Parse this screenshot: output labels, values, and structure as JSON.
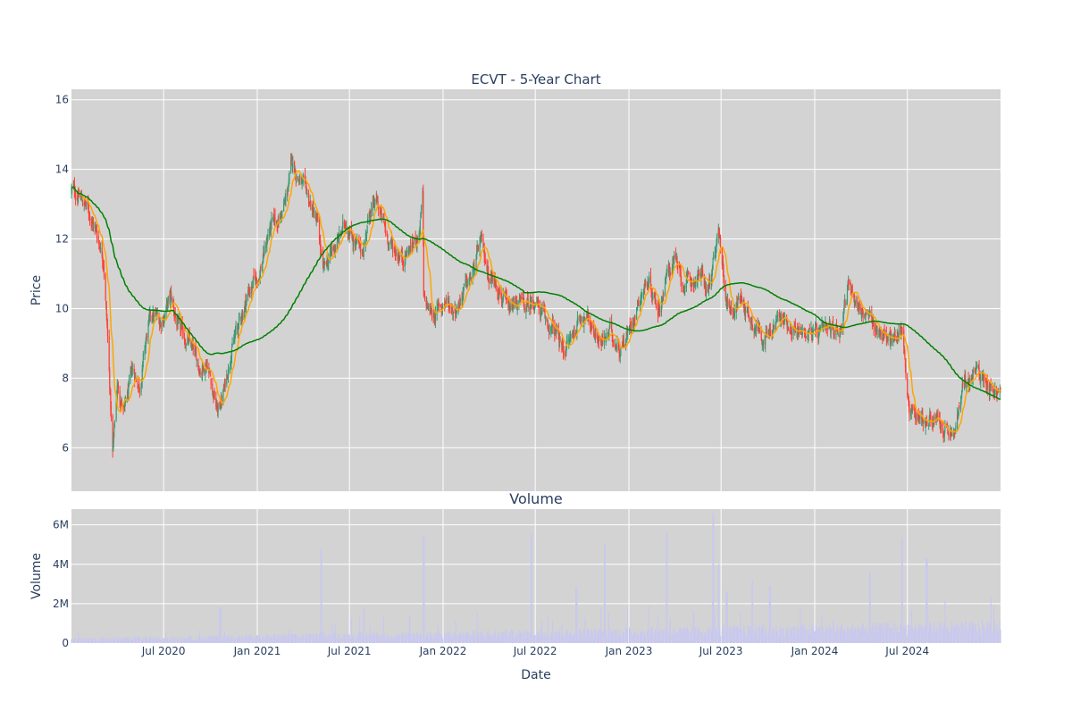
{
  "colors": {
    "background": "#ffffff",
    "plot_background": "#d3d3d3",
    "grid": "#ffffff",
    "increasing": "#3d9970",
    "decreasing": "#ff4136",
    "ma_short": "#ffa500",
    "ma_long": "#008000",
    "volume": "#c8c8f0",
    "text": "#2a3f5f"
  },
  "chart_data": [
    {
      "type": "candlestick",
      "title": "ECVT - 5-Year Chart",
      "ylabel": "Price",
      "ylim": [
        4.75,
        16.3
      ],
      "y_ticks": [
        6,
        8,
        10,
        12,
        14,
        16
      ],
      "x_range": [
        "2020-01-02",
        "2024-12-31"
      ],
      "grid": true,
      "series": [
        {
          "kind": "ohlc",
          "anchor_dates": [
            "2020-01-02",
            "2020-01-20",
            "2020-02-05",
            "2020-02-20",
            "2020-03-05",
            "2020-03-12",
            "2020-03-18",
            "2020-03-23",
            "2020-04-01",
            "2020-04-15",
            "2020-05-01",
            "2020-05-15",
            "2020-06-01",
            "2020-06-10",
            "2020-06-25",
            "2020-07-15",
            "2020-08-01",
            "2020-08-20",
            "2020-09-10",
            "2020-09-25",
            "2020-10-15",
            "2020-10-30",
            "2020-11-10",
            "2020-11-25",
            "2020-12-15",
            "2021-01-05",
            "2021-01-25",
            "2021-02-10",
            "2021-02-25",
            "2021-03-10",
            "2021-03-25",
            "2021-04-15",
            "2021-05-01",
            "2021-05-10",
            "2021-05-20",
            "2021-06-10",
            "2021-06-25",
            "2021-07-10",
            "2021-07-25",
            "2021-08-10",
            "2021-08-25",
            "2021-09-10",
            "2021-09-25",
            "2021-10-15",
            "2021-11-01",
            "2021-11-15",
            "2021-11-22",
            "2021-11-24",
            "2021-12-10",
            "2022-01-05",
            "2022-01-25",
            "2022-02-10",
            "2022-03-01",
            "2022-03-15",
            "2022-04-01",
            "2022-04-20",
            "2022-05-10",
            "2022-05-25",
            "2022-06-15",
            "2022-07-01",
            "2022-07-20",
            "2022-08-10",
            "2022-08-25",
            "2022-09-15",
            "2022-09-30",
            "2022-10-20",
            "2022-11-10",
            "2022-11-25",
            "2022-12-15",
            "2023-01-05",
            "2023-01-25",
            "2023-02-10",
            "2023-02-28",
            "2023-03-15",
            "2023-03-30",
            "2023-04-15",
            "2023-05-01",
            "2023-05-20",
            "2023-06-05",
            "2023-06-20",
            "2023-06-28",
            "2023-07-10",
            "2023-07-25",
            "2023-08-10",
            "2023-08-25",
            "2023-09-15",
            "2023-09-30",
            "2023-10-20",
            "2023-11-10",
            "2023-12-01",
            "2023-12-20",
            "2024-01-10",
            "2024-01-30",
            "2024-02-20",
            "2024-03-10",
            "2024-03-25",
            "2024-04-05",
            "2024-04-25",
            "2024-05-15",
            "2024-06-01",
            "2024-06-20",
            "2024-07-05",
            "2024-07-25",
            "2024-08-05",
            "2024-08-20",
            "2024-09-10",
            "2024-09-30",
            "2024-10-20",
            "2024-11-05",
            "2024-11-10",
            "2024-11-25",
            "2024-12-10",
            "2024-12-31"
          ],
          "anchor_closes": [
            13.4,
            13.2,
            12.8,
            12.2,
            11.5,
            9.5,
            7.5,
            5.8,
            7.8,
            7.0,
            8.2,
            7.8,
            9.5,
            9.8,
            9.6,
            10.3,
            9.3,
            9.0,
            8.3,
            8.5,
            7.0,
            7.8,
            8.8,
            9.5,
            10.5,
            11.0,
            12.3,
            12.5,
            13.0,
            14.2,
            13.7,
            13.0,
            12.3,
            11.0,
            11.4,
            12.0,
            12.5,
            12.0,
            11.5,
            12.8,
            13.0,
            12.2,
            11.7,
            11.5,
            11.8,
            12.2,
            13.2,
            10.2,
            9.8,
            10.2,
            10.0,
            10.5,
            11.0,
            11.9,
            11.0,
            10.7,
            9.8,
            10.2,
            10.0,
            10.3,
            9.6,
            9.3,
            8.8,
            9.3,
            9.9,
            9.5,
            9.0,
            9.3,
            8.9,
            9.5,
            10.5,
            10.8,
            10.0,
            10.8,
            11.5,
            10.7,
            10.7,
            11.0,
            10.5,
            11.5,
            12.2,
            10.3,
            10.0,
            10.3,
            9.8,
            9.4,
            9.1,
            9.7,
            9.6,
            9.3,
            9.4,
            9.2,
            9.3,
            9.5,
            10.8,
            10.1,
            9.9,
            9.5,
            9.3,
            9.0,
            9.5,
            7.1,
            6.9,
            6.8,
            6.8,
            6.5,
            6.3,
            7.8,
            8.0,
            8.2,
            8.1,
            7.8,
            7.5
          ]
        },
        {
          "kind": "moving_average",
          "name": "",
          "color": "#ffa500",
          "window_days": 20
        },
        {
          "kind": "moving_average",
          "name": "",
          "color": "#008000",
          "window_days": 200
        }
      ]
    },
    {
      "type": "bar",
      "title": "Volume",
      "xlabel": "Date",
      "ylabel": "Volume",
      "ylim": [
        0,
        6800000
      ],
      "y_ticks": [
        0,
        2000000,
        4000000,
        6000000
      ],
      "y_tick_labels": [
        "0",
        "2M",
        "4M",
        "6M"
      ],
      "x_ticks": [
        "2020-07-01",
        "2021-01-01",
        "2021-07-01",
        "2022-01-01",
        "2022-07-01",
        "2023-01-01",
        "2023-07-01",
        "2024-01-01",
        "2024-07-01"
      ],
      "x_tick_labels": [
        "Jul 2020",
        "Jan 2021",
        "Jul 2021",
        "Jan 2022",
        "Jul 2022",
        "Jan 2023",
        "Jul 2023",
        "Jan 2024",
        "Jul 2024"
      ],
      "spike_dates": [
        "2020-10-20",
        "2021-05-07",
        "2021-07-30",
        "2021-11-24",
        "2022-06-24",
        "2022-09-20",
        "2022-11-14",
        "2023-03-17",
        "2023-06-16",
        "2023-06-26",
        "2023-07-12",
        "2023-09-01",
        "2023-10-05",
        "2024-04-19",
        "2024-06-21",
        "2024-08-08"
      ],
      "spike_values": [
        1800000,
        4800000,
        1800000,
        5400000,
        5500000,
        2800000,
        5000000,
        5600000,
        6600000,
        4000000,
        2600000,
        3200000,
        2900000,
        3600000,
        5300000,
        4300000
      ]
    }
  ]
}
